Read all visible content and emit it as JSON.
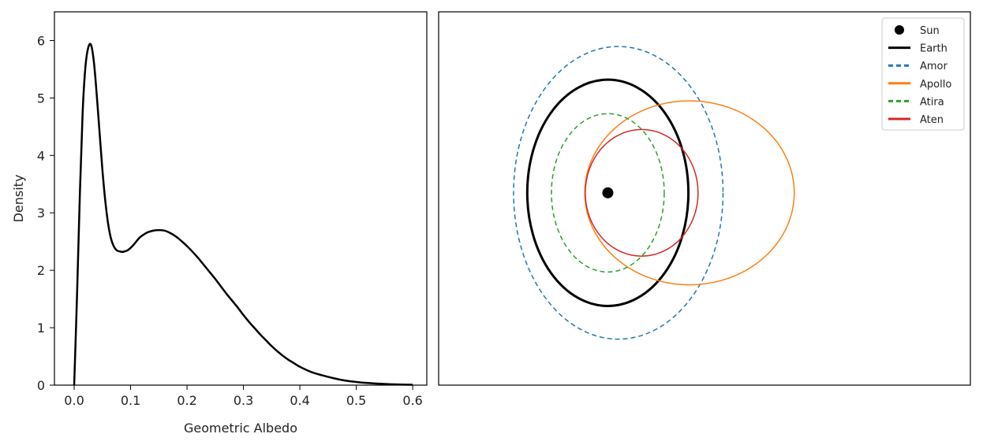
{
  "chart_data": [
    {
      "type": "line",
      "title": "",
      "xlabel": "Geometric Albedo",
      "ylabel": "Density",
      "xlim": [
        -0.035,
        0.625
      ],
      "ylim": [
        0,
        6.5
      ],
      "xticks": [
        0.0,
        0.1,
        0.2,
        0.3,
        0.4,
        0.5,
        0.6
      ],
      "xtick_labels": [
        "0.0",
        "0.1",
        "0.2",
        "0.3",
        "0.4",
        "0.5",
        "0.6"
      ],
      "yticks": [
        0,
        1,
        2,
        3,
        4,
        5,
        6
      ],
      "ytick_labels": [
        "0",
        "1",
        "2",
        "3",
        "4",
        "5",
        "6"
      ],
      "grid": false,
      "color": "#000000",
      "series": [
        {
          "x": [
            0.0,
            0.005,
            0.01,
            0.015,
            0.02,
            0.025,
            0.03,
            0.035,
            0.04,
            0.045,
            0.05,
            0.055,
            0.06,
            0.065,
            0.07,
            0.075,
            0.08,
            0.085,
            0.09,
            0.095,
            0.1,
            0.105,
            0.11,
            0.115,
            0.12,
            0.13,
            0.14,
            0.15,
            0.16,
            0.17,
            0.18,
            0.19,
            0.2,
            0.21,
            0.22,
            0.23,
            0.24,
            0.25,
            0.26,
            0.27,
            0.28,
            0.29,
            0.3,
            0.31,
            0.32,
            0.33,
            0.34,
            0.35,
            0.36,
            0.37,
            0.38,
            0.39,
            0.4,
            0.42,
            0.44,
            0.46,
            0.48,
            0.5,
            0.52,
            0.54,
            0.56,
            0.58,
            0.6
          ],
          "y": [
            0.0,
            1.55,
            3.3,
            4.75,
            5.55,
            5.88,
            5.92,
            5.62,
            5.05,
            4.4,
            3.75,
            3.22,
            2.82,
            2.56,
            2.42,
            2.35,
            2.33,
            2.32,
            2.33,
            2.35,
            2.39,
            2.44,
            2.5,
            2.56,
            2.6,
            2.66,
            2.69,
            2.7,
            2.69,
            2.65,
            2.59,
            2.51,
            2.42,
            2.32,
            2.21,
            2.09,
            1.97,
            1.85,
            1.72,
            1.59,
            1.47,
            1.35,
            1.22,
            1.1,
            0.99,
            0.88,
            0.78,
            0.68,
            0.59,
            0.51,
            0.44,
            0.38,
            0.32,
            0.23,
            0.17,
            0.12,
            0.08,
            0.055,
            0.037,
            0.025,
            0.016,
            0.01,
            0.006
          ]
        }
      ]
    },
    {
      "type": "scatter",
      "title": "",
      "xlabel": "",
      "ylabel": "",
      "xlim": [
        -2.1,
        4.5
      ],
      "ylim": [
        -1.7,
        1.6
      ],
      "axes_ticks": false,
      "grid": false,
      "legend_position": "top-right",
      "sun": {
        "label": "Sun",
        "x": 0,
        "y": 0,
        "color": "#000000"
      },
      "orbits": [
        {
          "name": "Earth",
          "a": 1.0,
          "e": 0.0,
          "dash": "solid",
          "color": "#000000",
          "width": 3
        },
        {
          "name": "Amor",
          "a": 1.3,
          "e": 0.1,
          "dash": "dashed",
          "color": "#1f77b4",
          "width": 1.5
        },
        {
          "name": "Apollo",
          "a": 1.3,
          "e": 0.78,
          "dash": "solid",
          "color": "#ff7f0e",
          "width": 1.5
        },
        {
          "name": "Atira",
          "a": 0.7,
          "e": 0.0,
          "dash": "dashed",
          "color": "#2ca02c",
          "width": 1.5
        },
        {
          "name": "Aten",
          "a": 0.7,
          "e": 0.6,
          "dash": "solid",
          "color": "#d62728",
          "width": 1.5
        }
      ]
    }
  ]
}
